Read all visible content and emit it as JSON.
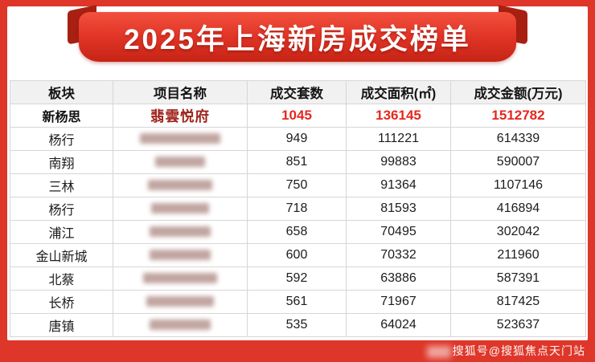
{
  "banner": {
    "title": "2025年上海新房成交榜单"
  },
  "colors": {
    "frame_red": "#de372a",
    "ribbon_red": "#e03427",
    "ribbon_fold_red": "#a82012",
    "highlight_number_red": "#e8261d",
    "highlight_project_red": "#9f231b",
    "header_bg": "#f1f1f1"
  },
  "chart_data": {
    "type": "table",
    "title": "2025年上海新房成交榜单",
    "columns": [
      "板块",
      "项目名称",
      "成交套数",
      "成交面积(㎡)",
      "成交金额(万元)"
    ],
    "rows": [
      {
        "district": "新杨思",
        "project": "翡雲悦府",
        "blurred": false,
        "units": "1045",
        "area": "136145",
        "amount": "1512782",
        "highlight": true
      },
      {
        "district": "杨行",
        "project": "",
        "blurred": true,
        "redacted_width": 100,
        "units": "949",
        "area": "111221",
        "amount": "614339",
        "highlight": false
      },
      {
        "district": "南翔",
        "project": "",
        "blurred": true,
        "redacted_width": 62,
        "units": "851",
        "area": "99883",
        "amount": "590007",
        "highlight": false
      },
      {
        "district": "三林",
        "project": "",
        "blurred": true,
        "redacted_width": 80,
        "units": "750",
        "area": "91364",
        "amount": "1107146",
        "highlight": false
      },
      {
        "district": "杨行",
        "project": "",
        "blurred": true,
        "redacted_width": 72,
        "units": "718",
        "area": "81593",
        "amount": "416894",
        "highlight": false
      },
      {
        "district": "浦江",
        "project": "",
        "blurred": true,
        "redacted_width": 76,
        "units": "658",
        "area": "70495",
        "amount": "302042",
        "highlight": false
      },
      {
        "district": "金山新城",
        "project": "",
        "blurred": true,
        "redacted_width": 76,
        "units": "600",
        "area": "70332",
        "amount": "211960",
        "highlight": false
      },
      {
        "district": "北蔡",
        "project": "",
        "blurred": true,
        "redacted_width": 92,
        "units": "592",
        "area": "63886",
        "amount": "587391",
        "highlight": false
      },
      {
        "district": "长桥",
        "project": "",
        "blurred": true,
        "redacted_width": 84,
        "units": "561",
        "area": "71967",
        "amount": "817425",
        "highlight": false
      },
      {
        "district": "唐镇",
        "project": "",
        "blurred": true,
        "redacted_width": 76,
        "units": "535",
        "area": "64024",
        "amount": "523637",
        "highlight": false
      }
    ]
  },
  "watermark": {
    "text": "搜狐号@搜狐焦点天门站"
  }
}
